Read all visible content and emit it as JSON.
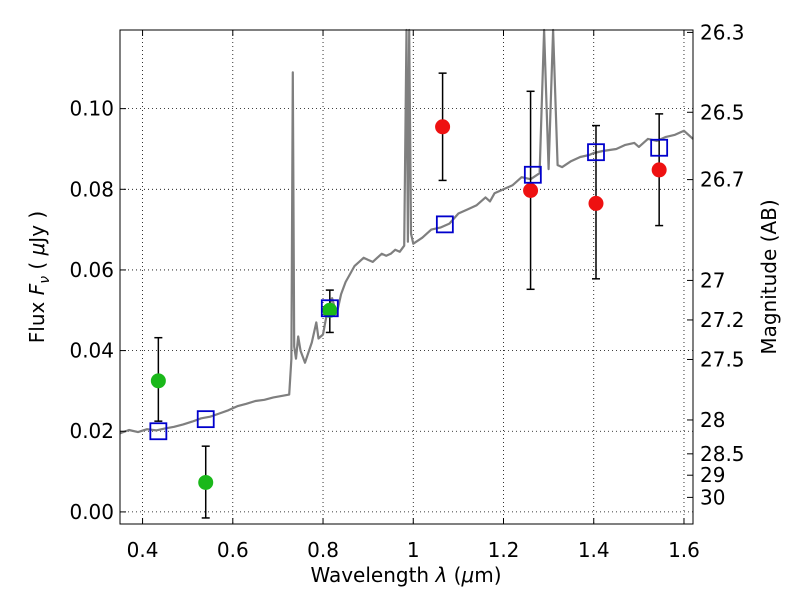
{
  "chart_data": {
    "type": "scatter",
    "xlabel": {
      "prefix": "Wavelength ",
      "sym": "λ",
      "unit_open": " (",
      "mu": "μ",
      "unit_close": "m)"
    },
    "ylabel": {
      "prefix": "Flux ",
      "sym": "F",
      "sub": "ν",
      "unit_open": " ( ",
      "mu": "μ",
      "unit_close": "Jy )"
    },
    "ylabel_right": "Magnitude (AB)",
    "xlim": [
      0.35,
      1.62
    ],
    "ylim": [
      -0.003,
      0.1195
    ],
    "grid": true,
    "x_ticks": [
      {
        "v": 0.4,
        "label": "0.4"
      },
      {
        "v": 0.6,
        "label": "0.6"
      },
      {
        "v": 0.8,
        "label": "0.8"
      },
      {
        "v": 1.0,
        "label": "1"
      },
      {
        "v": 1.2,
        "label": "1.2"
      },
      {
        "v": 1.4,
        "label": "1.4"
      },
      {
        "v": 1.6,
        "label": "1.6"
      }
    ],
    "y_ticks": [
      {
        "v": 0.0,
        "label": "0.00"
      },
      {
        "v": 0.02,
        "label": "0.02"
      },
      {
        "v": 0.04,
        "label": "0.04"
      },
      {
        "v": 0.06,
        "label": "0.06"
      },
      {
        "v": 0.08,
        "label": "0.08"
      },
      {
        "v": 0.1,
        "label": "0.10"
      }
    ],
    "mag_ticks": [
      {
        "flux": 0.1189,
        "label": "26.3"
      },
      {
        "flux": 0.0991,
        "label": "26.5"
      },
      {
        "flux": 0.0824,
        "label": "26.7"
      },
      {
        "flux": 0.0574,
        "label": "27"
      },
      {
        "flux": 0.0476,
        "label": "27.2"
      },
      {
        "flux": 0.0378,
        "label": "27.5"
      },
      {
        "flux": 0.0228,
        "label": "28"
      },
      {
        "flux": 0.0144,
        "label": "28.5"
      },
      {
        "flux": 0.0091,
        "label": "29"
      },
      {
        "flux": 0.0036,
        "label": "30"
      }
    ],
    "colors": {
      "model": "#7f7f7f",
      "green": "#1ab81a",
      "red": "#ee1111",
      "square": "#0000cc",
      "errorbar": "#000000"
    },
    "series": [
      {
        "marker": "line",
        "x": [
          0.35,
          0.37,
          0.39,
          0.41,
          0.43,
          0.45,
          0.47,
          0.49,
          0.51,
          0.53,
          0.55,
          0.57,
          0.59,
          0.61,
          0.63,
          0.65,
          0.67,
          0.69,
          0.71,
          0.725,
          0.73,
          0.733,
          0.736,
          0.74,
          0.745,
          0.75,
          0.76,
          0.775,
          0.785,
          0.79,
          0.8,
          0.81,
          0.82,
          0.83,
          0.84,
          0.85,
          0.86,
          0.87,
          0.88,
          0.89,
          0.9,
          0.91,
          0.92,
          0.93,
          0.94,
          0.95,
          0.96,
          0.97,
          0.98,
          0.985,
          0.988,
          0.991,
          0.995,
          1.0,
          1.02,
          1.04,
          1.06,
          1.08,
          1.1,
          1.12,
          1.14,
          1.16,
          1.17,
          1.18,
          1.2,
          1.22,
          1.24,
          1.26,
          1.28,
          1.29,
          1.3,
          1.31,
          1.32,
          1.33,
          1.35,
          1.37,
          1.39,
          1.4,
          1.42,
          1.45,
          1.47,
          1.49,
          1.5,
          1.52,
          1.54,
          1.56,
          1.58,
          1.6,
          1.62
        ],
        "y": [
          0.0195,
          0.0203,
          0.0198,
          0.0205,
          0.0202,
          0.0207,
          0.0211,
          0.0217,
          0.0224,
          0.0232,
          0.0236,
          0.0244,
          0.0252,
          0.0262,
          0.0268,
          0.0275,
          0.0278,
          0.0284,
          0.0288,
          0.0291,
          0.038,
          0.109,
          0.041,
          0.038,
          0.0435,
          0.04,
          0.037,
          0.042,
          0.047,
          0.043,
          0.044,
          0.05,
          0.053,
          0.049,
          0.054,
          0.057,
          0.059,
          0.061,
          0.062,
          0.063,
          0.0625,
          0.062,
          0.063,
          0.064,
          0.0635,
          0.064,
          0.065,
          0.0645,
          0.066,
          0.1195,
          0.067,
          0.1195,
          0.069,
          0.0665,
          0.068,
          0.07,
          0.0705,
          0.0715,
          0.074,
          0.075,
          0.076,
          0.078,
          0.077,
          0.079,
          0.08,
          0.081,
          0.083,
          0.0825,
          0.084,
          0.1195,
          0.085,
          0.1195,
          0.086,
          0.0855,
          0.087,
          0.088,
          0.0885,
          0.089,
          0.0895,
          0.09,
          0.091,
          0.0915,
          0.0905,
          0.0925,
          0.092,
          0.093,
          0.0935,
          0.0945,
          0.0925
        ]
      },
      {
        "marker": "circle-green",
        "x": [
          0.435,
          0.54,
          0.815
        ],
        "y": [
          0.0325,
          0.0073,
          0.05
        ],
        "err_low": [
          0.0225,
          -0.0015,
          0.0445
        ],
        "err_high": [
          0.0432,
          0.0163,
          0.055
        ]
      },
      {
        "marker": "circle-red",
        "x": [
          1.065,
          1.26,
          1.405,
          1.545
        ],
        "y": [
          0.0955,
          0.0797,
          0.0765,
          0.0848
        ],
        "err_low": [
          0.0822,
          0.0552,
          0.0578,
          0.071
        ],
        "err_high": [
          0.1088,
          0.1043,
          0.0958,
          0.0987
        ]
      },
      {
        "marker": "square-blue",
        "x": [
          0.435,
          0.54,
          0.815,
          1.07,
          1.265,
          1.405,
          1.545
        ],
        "y": [
          0.02,
          0.023,
          0.0505,
          0.0713,
          0.0836,
          0.0892,
          0.0903
        ]
      }
    ]
  }
}
